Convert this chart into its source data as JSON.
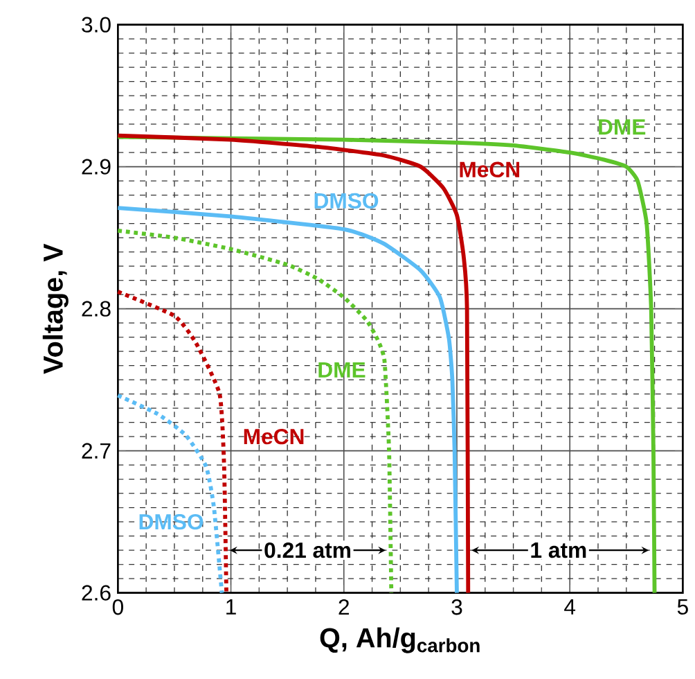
{
  "chart_data": {
    "type": "line",
    "xlabel": "**Q, Ah/g**$_{carbon}$",
    "ylabel": "Voltage, V",
    "xlim": [
      0,
      5
    ],
    "ylim": [
      2.6,
      3.0
    ],
    "xticks": [
      0,
      1,
      2,
      3,
      4,
      5
    ],
    "yticks": [
      {
        "value": 2.6,
        "label": "2.6"
      },
      {
        "value": 2.7,
        "label": "2.7"
      },
      {
        "value": 2.8,
        "label": "2.8"
      },
      {
        "value": 2.9,
        "label": "2.9"
      },
      {
        "value": 3.0,
        "label": "3.0"
      }
    ],
    "grid": true,
    "marker": "none",
    "series": [
      {
        "name": "DME",
        "color": "#5dc42a",
        "line_style": "solid",
        "x": [
          0,
          1,
          2,
          3,
          3.5,
          4,
          4.3,
          4.5,
          4.6,
          4.68,
          4.72,
          4.74,
          4.75
        ],
        "values": [
          2.921,
          2.92,
          2.919,
          2.917,
          2.915,
          2.91,
          2.905,
          2.9,
          2.89,
          2.86,
          2.8,
          2.7,
          2.6
        ]
      },
      {
        "name": "MeCN",
        "color": "#c00000",
        "line_style": "solid",
        "x": [
          0,
          1,
          1.77,
          2.35,
          2.68,
          2.88,
          3.0,
          3.06,
          3.09,
          3.1
        ],
        "values": [
          2.922,
          2.919,
          2.914,
          2.908,
          2.9,
          2.885,
          2.866,
          2.837,
          2.8,
          2.6
        ]
      },
      {
        "name": "DMSO",
        "color": "#5bbcf5",
        "line_style": "solid",
        "x": [
          0,
          1,
          2,
          2.35,
          2.68,
          2.85,
          2.93,
          2.96,
          2.98,
          3.0
        ],
        "values": [
          2.871,
          2.865,
          2.856,
          2.846,
          2.827,
          2.808,
          2.779,
          2.75,
          2.7,
          2.6
        ]
      },
      {
        "name": "DME",
        "color": "#5dc42a",
        "line_style": "dotted",
        "x": [
          0,
          0.5,
          1,
          1.5,
          1.77,
          2.0,
          2.2,
          2.3,
          2.36,
          2.4,
          2.42
        ],
        "values": [
          2.855,
          2.85,
          2.842,
          2.831,
          2.821,
          2.808,
          2.792,
          2.778,
          2.763,
          2.7,
          2.6
        ]
      },
      {
        "name": "MeCN",
        "color": "#c00000",
        "line_style": "dotted",
        "x": [
          0,
          0.5,
          0.69,
          0.9,
          0.94,
          0.96
        ],
        "values": [
          2.812,
          2.795,
          2.776,
          2.74,
          2.689,
          2.6
        ]
      },
      {
        "name": "DMSO",
        "color": "#5bbcf5",
        "line_style": "dotted",
        "x": [
          0,
          0.35,
          0.6,
          0.78,
          0.85,
          0.92
        ],
        "values": [
          2.739,
          2.726,
          2.711,
          2.689,
          2.66,
          2.6
        ]
      }
    ],
    "annotations": [
      "0.21 atm",
      "1 atm"
    ]
  }
}
